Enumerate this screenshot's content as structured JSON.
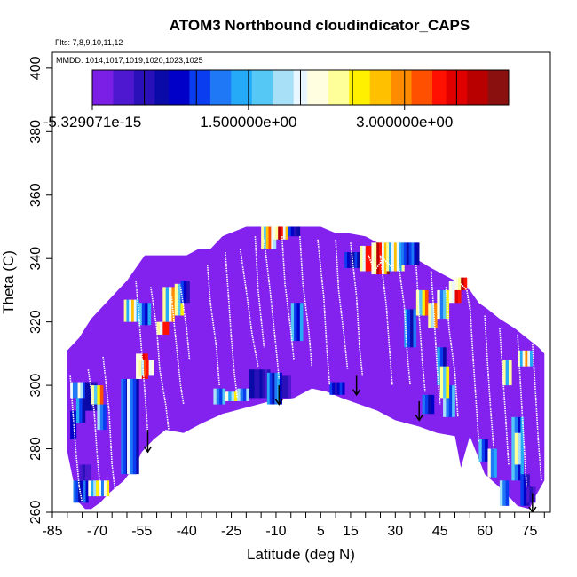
{
  "colors": {
    "background_fill": "#8322ee",
    "profile_line": "#ffffff",
    "arrow": "#000000",
    "frame": "#000000",
    "colormap": [
      "#7b1fe6",
      "#4d18d0",
      "#2a10b8",
      "#0a0aa8",
      "#0000c8",
      "#0a3cf0",
      "#1f78f5",
      "#25aaf8",
      "#55c8f6",
      "#a8e0f8",
      "#e8f6ff",
      "#fffee0",
      "#ffff9a",
      "#fff000",
      "#ffc000",
      "#ff8c00",
      "#ff5000",
      "#ff1000",
      "#e00000",
      "#b80000",
      "#8a1010"
    ]
  },
  "chart_data": {
    "type": "heatmap",
    "title": "ATOM3 Northbound cloudindicator_CAPS",
    "subtitle_flights": "Flts: 7,8,9,10,11,12",
    "subtitle_dates": "MMDD: 1014,1017,1019,1020,1023,1025",
    "xlabel": "Latitude (deg N)",
    "ylabel": "Theta (C)",
    "xlim": [
      -85,
      82
    ],
    "ylim": [
      260,
      405
    ],
    "x_ticks": [
      -85,
      -80,
      -75,
      -70,
      -65,
      -60,
      -55,
      -50,
      -45,
      -40,
      -35,
      -30,
      -25,
      -20,
      -15,
      -10,
      -5,
      0,
      5,
      10,
      15,
      20,
      25,
      30,
      35,
      40,
      45,
      50,
      55,
      60,
      65,
      70,
      75,
      80
    ],
    "x_tick_labels": [
      {
        "value": -85,
        "label": "-85"
      },
      {
        "value": -70,
        "label": "-70"
      },
      {
        "value": -55,
        "label": "-55"
      },
      {
        "value": -40,
        "label": "-40"
      },
      {
        "value": -25,
        "label": "-25"
      },
      {
        "value": -10,
        "label": "-10"
      },
      {
        "value": 5,
        "label": "5"
      },
      {
        "value": 15,
        "label": "15"
      },
      {
        "value": 30,
        "label": "30"
      },
      {
        "value": 45,
        "label": "45"
      },
      {
        "value": 60,
        "label": "60"
      },
      {
        "value": 75,
        "label": "75"
      }
    ],
    "y_ticks": [
      {
        "value": 260,
        "label": "260"
      },
      {
        "value": 280,
        "label": "280"
      },
      {
        "value": 300,
        "label": "300"
      },
      {
        "value": 320,
        "label": "320"
      },
      {
        "value": 340,
        "label": "340"
      },
      {
        "value": 360,
        "label": "360"
      },
      {
        "value": 380,
        "label": "380"
      },
      {
        "value": 400,
        "label": "400"
      }
    ],
    "colorbar": {
      "min": -5.329071e-15,
      "max": 4.0,
      "tick_labels": [
        {
          "value": -5.329071e-15,
          "label": "-5.329071e-15"
        },
        {
          "value": 1.5,
          "label": "1.500000e+00"
        },
        {
          "value": 3.0,
          "label": "3.000000e+00"
        }
      ],
      "minor_ticks": [
        0.5,
        1.0,
        1.5,
        2.0,
        2.5,
        3.0,
        3.5
      ]
    },
    "coverage_top": [
      [
        -80,
        311
      ],
      [
        -78,
        313
      ],
      [
        -76,
        315
      ],
      [
        -74,
        318
      ],
      [
        -72,
        321
      ],
      [
        -69,
        324
      ],
      [
        -66,
        327
      ],
      [
        -63,
        330
      ],
      [
        -60,
        333
      ],
      [
        -57,
        337
      ],
      [
        -54,
        341
      ],
      [
        -49,
        341
      ],
      [
        -44,
        341
      ],
      [
        -40,
        341
      ],
      [
        -36,
        343
      ],
      [
        -32,
        343
      ],
      [
        -28,
        347
      ],
      [
        -20,
        350
      ],
      [
        -10,
        350
      ],
      [
        0,
        350
      ],
      [
        5,
        350
      ],
      [
        10,
        348
      ],
      [
        14,
        348
      ],
      [
        20,
        347
      ],
      [
        28,
        343
      ],
      [
        35,
        341
      ],
      [
        42,
        337
      ],
      [
        50,
        333
      ],
      [
        55,
        330
      ],
      [
        58,
        326
      ],
      [
        61,
        324
      ],
      [
        65,
        321
      ],
      [
        70,
        318
      ],
      [
        74,
        315
      ],
      [
        78,
        312
      ],
      [
        80,
        310
      ]
    ],
    "coverage_bottom": [
      [
        -80,
        279
      ],
      [
        -78,
        270
      ],
      [
        -76,
        263
      ],
      [
        -74,
        261
      ],
      [
        -72,
        261
      ],
      [
        -69,
        263
      ],
      [
        -66,
        266
      ],
      [
        -61,
        270
      ],
      [
        -57,
        275
      ],
      [
        -55,
        279
      ],
      [
        -51,
        283
      ],
      [
        -47,
        286
      ],
      [
        -41,
        285
      ],
      [
        -35,
        288
      ],
      [
        -28,
        291
      ],
      [
        -20,
        293
      ],
      [
        -12,
        295
      ],
      [
        -4,
        296
      ],
      [
        2,
        299
      ],
      [
        7,
        298
      ],
      [
        12,
        296
      ],
      [
        18,
        294
      ],
      [
        24,
        292
      ],
      [
        30,
        289
      ],
      [
        38,
        287
      ],
      [
        44,
        285
      ],
      [
        50,
        284
      ],
      [
        52,
        274
      ],
      [
        55,
        284
      ],
      [
        60,
        272
      ],
      [
        66,
        267
      ],
      [
        71,
        262
      ],
      [
        75,
        261
      ],
      [
        77,
        265
      ],
      [
        80,
        270
      ]
    ],
    "cells": [
      {
        "x0": -79,
        "x1": -74,
        "y0": 296,
        "y1": 301,
        "v": 2.2
      },
      {
        "x0": -79,
        "x1": -77,
        "y0": 283,
        "y1": 292,
        "v": 0.9
      },
      {
        "x0": -77,
        "x1": -74,
        "y0": 288,
        "y1": 296,
        "v": 1.4
      },
      {
        "x0": -74,
        "x1": -70,
        "y0": 292,
        "y1": 301,
        "v": 0.7
      },
      {
        "x0": -72,
        "x1": -68,
        "y0": 294,
        "y1": 300,
        "v": 3.2
      },
      {
        "x0": -70,
        "x1": -67,
        "y0": 286,
        "y1": 294,
        "v": 1.9
      },
      {
        "x0": -78,
        "x1": -73,
        "y0": 263,
        "y1": 270,
        "v": 1.2
      },
      {
        "x0": -73,
        "x1": -66,
        "y0": 265,
        "y1": 270,
        "v": 2.6
      },
      {
        "x0": -76,
        "x1": -72,
        "y0": 270,
        "y1": 275,
        "v": 0.4
      },
      {
        "x0": -62,
        "x1": -56,
        "y0": 272,
        "y1": 302,
        "v": 1.3
      },
      {
        "x0": -60,
        "x1": -57,
        "y0": 272,
        "y1": 302,
        "v": 2.0
      },
      {
        "x0": -57,
        "x1": -53,
        "y0": 302,
        "y1": 310,
        "v": 3.8
      },
      {
        "x0": -56,
        "x1": -51,
        "y0": 303,
        "y1": 308,
        "v": 3.5
      },
      {
        "x0": -61,
        "x1": -56,
        "y0": 320,
        "y1": 327,
        "v": 2.8
      },
      {
        "x0": -56,
        "x1": -52,
        "y0": 319,
        "y1": 326,
        "v": 1.6
      },
      {
        "x0": -50,
        "x1": -46,
        "y0": 316,
        "y1": 320,
        "v": 3.6
      },
      {
        "x0": -48,
        "x1": -44,
        "y0": 320,
        "y1": 331,
        "v": 2.9
      },
      {
        "x0": -44,
        "x1": -41,
        "y0": 322,
        "y1": 332,
        "v": 3.1
      },
      {
        "x0": -42,
        "x1": -39,
        "y0": 326,
        "y1": 333,
        "v": 1.1
      },
      {
        "x0": -31,
        "x1": -27,
        "y0": 294,
        "y1": 299,
        "v": 1.8
      },
      {
        "x0": -27,
        "x1": -23,
        "y0": 295,
        "y1": 298,
        "v": 2.6
      },
      {
        "x0": -23,
        "x1": -19,
        "y0": 295,
        "y1": 299,
        "v": 1.9
      },
      {
        "x0": -19,
        "x1": -12,
        "y0": 296,
        "y1": 305,
        "v": 0.7
      },
      {
        "x0": -13,
        "x1": -8,
        "y0": 294,
        "y1": 304,
        "v": 1.5
      },
      {
        "x0": -8,
        "x1": -5,
        "y0": 296,
        "y1": 303,
        "v": 0.6
      },
      {
        "x0": -15,
        "x1": -10,
        "y0": 343,
        "y1": 350,
        "v": 3.3
      },
      {
        "x0": -11,
        "x1": -6,
        "y0": 346,
        "y1": 350,
        "v": 3.9
      },
      {
        "x0": -6,
        "x1": -2,
        "y0": 347,
        "y1": 350,
        "v": 1.0
      },
      {
        "x0": -5,
        "x1": -1,
        "y0": 314,
        "y1": 326,
        "v": 1.6
      },
      {
        "x0": 8,
        "x1": 13,
        "y0": 297,
        "y1": 301,
        "v": 1.1
      },
      {
        "x0": 13,
        "x1": 18,
        "y0": 337,
        "y1": 342,
        "v": 1.0
      },
      {
        "x0": 18,
        "x1": 22,
        "y0": 336,
        "y1": 344,
        "v": 3.6
      },
      {
        "x0": 22,
        "x1": 28,
        "y0": 335,
        "y1": 345,
        "v": 3.9
      },
      {
        "x0": 27,
        "x1": 33,
        "y0": 336,
        "y1": 345,
        "v": 2.8
      },
      {
        "x0": 32,
        "x1": 38,
        "y0": 338,
        "y1": 345,
        "v": 1.3
      },
      {
        "x0": 33,
        "x1": 37,
        "y0": 312,
        "y1": 324,
        "v": 1.5
      },
      {
        "x0": 37,
        "x1": 41,
        "y0": 322,
        "y1": 330,
        "v": 3.2
      },
      {
        "x0": 41,
        "x1": 44,
        "y0": 318,
        "y1": 326,
        "v": 3.4
      },
      {
        "x0": 44,
        "x1": 48,
        "y0": 321,
        "y1": 330,
        "v": 2.5
      },
      {
        "x0": 48,
        "x1": 52,
        "y0": 326,
        "y1": 333,
        "v": 3.7
      },
      {
        "x0": 50,
        "x1": 54,
        "y0": 330,
        "y1": 334,
        "v": 3.9
      },
      {
        "x0": 44,
        "x1": 47,
        "y0": 300,
        "y1": 312,
        "v": 1.4
      },
      {
        "x0": 46,
        "x1": 50,
        "y0": 290,
        "y1": 300,
        "v": 1.8
      },
      {
        "x0": 45,
        "x1": 48,
        "y0": 296,
        "y1": 306,
        "v": 3.1
      },
      {
        "x0": 39,
        "x1": 43,
        "y0": 291,
        "y1": 297,
        "v": 1.2
      },
      {
        "x0": 58,
        "x1": 61,
        "y0": 276,
        "y1": 283,
        "v": 1.6
      },
      {
        "x0": 61,
        "x1": 64,
        "y0": 271,
        "y1": 280,
        "v": 2.4
      },
      {
        "x0": 65,
        "x1": 68,
        "y0": 262,
        "y1": 270,
        "v": 1.8
      },
      {
        "x0": 69,
        "x1": 73,
        "y0": 270,
        "y1": 290,
        "v": 1.7
      },
      {
        "x0": 70,
        "x1": 72,
        "y0": 275,
        "y1": 285,
        "v": 3.4
      },
      {
        "x0": 72,
        "x1": 75,
        "y0": 262,
        "y1": 272,
        "v": 1.1
      },
      {
        "x0": 74,
        "x1": 77,
        "y0": 263,
        "y1": 268,
        "v": 0.4
      },
      {
        "x0": 66,
        "x1": 69,
        "y0": 300,
        "y1": 308,
        "v": 3.0
      },
      {
        "x0": 71,
        "x1": 76,
        "y0": 306,
        "y1": 311,
        "v": 2.9
      }
    ],
    "profiles": [
      [
        [
          -79,
          303
        ],
        [
          -78,
          290
        ],
        [
          -77,
          278
        ],
        [
          -76,
          268
        ],
        [
          -75,
          263
        ]
      ],
      [
        [
          -73,
          305
        ],
        [
          -71,
          292
        ],
        [
          -70,
          278
        ],
        [
          -69,
          268
        ]
      ],
      [
        [
          -68,
          309
        ],
        [
          -66,
          292
        ],
        [
          -65,
          275
        ],
        [
          -64,
          267
        ]
      ],
      [
        [
          -57,
          333
        ],
        [
          -56,
          322
        ],
        [
          -55,
          310
        ],
        [
          -54,
          298
        ],
        [
          -53,
          285
        ]
      ],
      [
        [
          -52,
          331
        ],
        [
          -50,
          318
        ],
        [
          -49,
          305
        ],
        [
          -47,
          294
        ],
        [
          -46,
          286
        ]
      ],
      [
        [
          -45,
          328
        ],
        [
          -44,
          318
        ],
        [
          -43,
          309
        ],
        [
          -42,
          300
        ],
        [
          -41,
          294
        ]
      ],
      [
        [
          -42,
          331
        ],
        [
          -40,
          318
        ],
        [
          -39,
          308
        ]
      ],
      [
        [
          -33,
          338
        ],
        [
          -32,
          326
        ],
        [
          -30,
          312
        ],
        [
          -29,
          300
        ]
      ],
      [
        [
          -27,
          342
        ],
        [
          -26,
          329
        ],
        [
          -25,
          315
        ],
        [
          -24,
          304
        ],
        [
          -23,
          296
        ]
      ],
      [
        [
          -22,
          343
        ],
        [
          -20,
          330
        ],
        [
          -18,
          316
        ],
        [
          -16,
          306
        ]
      ],
      [
        [
          -17,
          347
        ],
        [
          -16,
          330
        ],
        [
          -14,
          312
        ]
      ],
      [
        [
          -14,
          346
        ],
        [
          -12,
          330
        ],
        [
          -10,
          312
        ],
        [
          -9,
          302
        ]
      ],
      [
        [
          -8,
          347
        ],
        [
          -7,
          332
        ],
        [
          -5,
          317
        ],
        [
          -4,
          308
        ]
      ],
      [
        [
          -2,
          347
        ],
        [
          -1,
          332
        ],
        [
          1,
          317
        ],
        [
          2,
          306
        ]
      ],
      [
        [
          4,
          346
        ],
        [
          6,
          328
        ],
        [
          7,
          312
        ],
        [
          8,
          300
        ]
      ],
      [
        [
          10,
          346
        ],
        [
          11,
          330
        ],
        [
          13,
          314
        ],
        [
          14,
          305
        ]
      ],
      [
        [
          15,
          345
        ],
        [
          17,
          328
        ],
        [
          18,
          312
        ],
        [
          19,
          303
        ]
      ],
      [
        [
          21,
          341
        ],
        [
          23,
          336
        ],
        [
          26,
          340
        ],
        [
          29,
          337
        ]
      ],
      [
        [
          25,
          341
        ],
        [
          27,
          325
        ],
        [
          28,
          312
        ],
        [
          29,
          300
        ]
      ],
      [
        [
          31,
          339
        ],
        [
          33,
          325
        ],
        [
          34,
          310
        ],
        [
          35,
          300
        ]
      ],
      [
        [
          37,
          338
        ],
        [
          38,
          322
        ],
        [
          39,
          308
        ],
        [
          40,
          298
        ]
      ],
      [
        [
          42,
          336
        ],
        [
          43,
          322
        ],
        [
          44,
          306
        ],
        [
          45,
          294
        ]
      ],
      [
        [
          47,
          331
        ],
        [
          48,
          318
        ],
        [
          50,
          304
        ],
        [
          51,
          290
        ]
      ],
      [
        [
          52,
          332
        ],
        [
          54,
          330
        ],
        [
          55,
          324
        ]
      ],
      [
        [
          55,
          326
        ],
        [
          56,
          310
        ],
        [
          57,
          296
        ],
        [
          58,
          282
        ]
      ],
      [
        [
          60,
          322
        ],
        [
          61,
          306
        ],
        [
          62,
          292
        ],
        [
          63,
          280
        ]
      ],
      [
        [
          65,
          318
        ],
        [
          66,
          304
        ],
        [
          67,
          290
        ],
        [
          68,
          275
        ]
      ],
      [
        [
          71,
          316
        ],
        [
          72,
          300
        ],
        [
          73,
          284
        ],
        [
          74,
          268
        ]
      ],
      [
        [
          76,
          313
        ],
        [
          77,
          298
        ],
        [
          78,
          282
        ],
        [
          79,
          270
        ]
      ]
    ],
    "arrows": [
      {
        "x": -53,
        "y_from": 286,
        "y_to": 279
      },
      {
        "x": -9,
        "y_from": 300,
        "y_to": 294
      },
      {
        "x": 17,
        "y_from": 303,
        "y_to": 297
      },
      {
        "x": 38,
        "y_from": 295,
        "y_to": 289
      },
      {
        "x": 76,
        "y_from": 266,
        "y_to": 260
      }
    ]
  }
}
